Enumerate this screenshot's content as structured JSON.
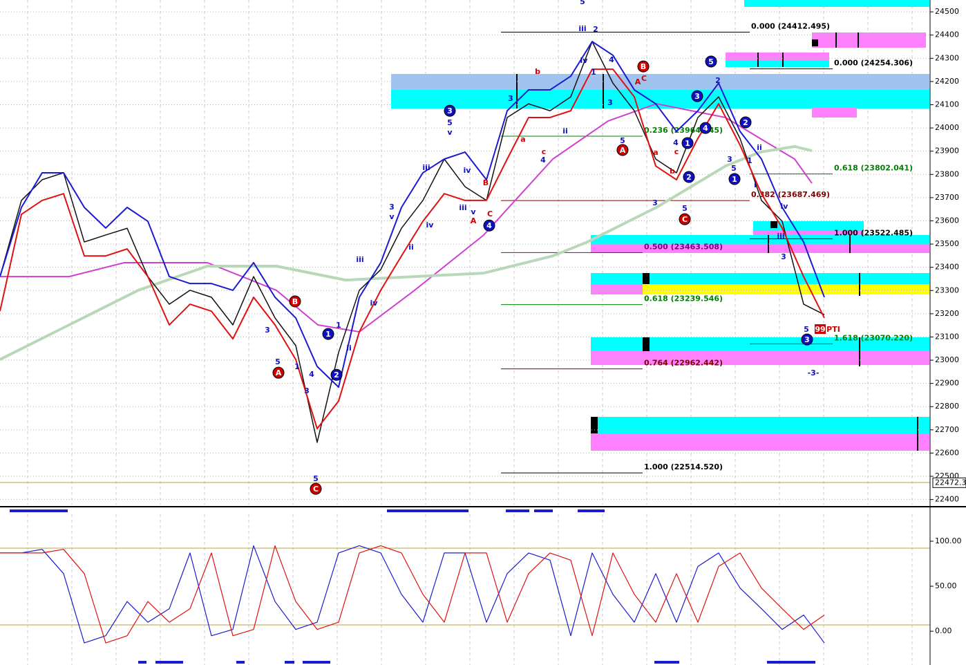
{
  "chart_data": [
    {
      "type": "line",
      "grid": true,
      "xlim": [
        0,
        1345
      ],
      "ylim": [
        22378,
        24551
      ],
      "yticks": [
        22400,
        22500,
        22600,
        22700,
        22800,
        22900,
        23000,
        23100,
        23200,
        23300,
        23400,
        23500,
        23600,
        23700,
        23800,
        23900,
        24000,
        24100,
        24200,
        24300,
        24400,
        24500
      ],
      "last_price": {
        "value": 22472.3,
        "label": "22472.3"
      },
      "series": [
        {
          "color": "#1010c8",
          "width": 2,
          "x": [
            0,
            100,
            180,
            300,
            400,
            460,
            520,
            600,
            700,
            800,
            880,
            950,
            1050,
            1100,
            1150,
            1175
          ],
          "values": [
            23360,
            23360,
            23420,
            23420,
            23301,
            23152,
            23122,
            23301,
            23539,
            23866,
            24030,
            24104,
            24045,
            23955,
            23866,
            23762
          ],
          "alt_color": "#d040d0"
        },
        {
          "color": "#b8d8b8",
          "width": 4,
          "x": [
            0,
            100,
            200,
            300,
            400,
            500,
            600,
            700,
            800,
            850,
            950,
            1050,
            1100,
            1150,
            1175
          ],
          "values": [
            23003,
            23152,
            23301,
            23405,
            23405,
            23345,
            23360,
            23375,
            23449,
            23509,
            23658,
            23836,
            23896,
            23920,
            23902
          ]
        },
        {
          "color": "#111111",
          "width": 1.5,
          "x": [
            0,
            31,
            61,
            92,
            122,
            153,
            184,
            214,
            245,
            275,
            306,
            337,
            367,
            398,
            428,
            459,
            490,
            520,
            551,
            581,
            612,
            643,
            673,
            704,
            734,
            765,
            796,
            826,
            857,
            887,
            918,
            949,
            979,
            1010,
            1040,
            1071,
            1102,
            1132,
            1163,
            1193
          ],
          "values": [
            23360,
            23688,
            23777,
            23807,
            23509,
            23539,
            23568,
            23360,
            23241,
            23301,
            23271,
            23152,
            23360,
            23182,
            23063,
            22646,
            23033,
            23301,
            23390,
            23568,
            23688,
            23866,
            23747,
            23688,
            24045,
            24104,
            24074,
            24134,
            24372,
            24193,
            24074,
            23866,
            23807,
            24045,
            24134,
            23955,
            23688,
            23598,
            23241,
            23196
          ]
        },
        {
          "color": "#1a1ad0",
          "width": 2,
          "x": [
            0,
            31,
            61,
            92,
            122,
            153,
            184,
            214,
            245,
            275,
            306,
            337,
            367,
            398,
            428,
            459,
            490,
            520,
            551,
            581,
            612,
            643,
            673,
            704,
            734,
            765,
            796,
            826,
            857,
            887,
            918,
            949,
            979,
            1010,
            1040,
            1071,
            1102,
            1132,
            1163,
            1193
          ],
          "values": [
            23360,
            23658,
            23807,
            23807,
            23658,
            23569,
            23658,
            23598,
            23360,
            23330,
            23330,
            23301,
            23420,
            23271,
            23182,
            22973,
            22884,
            23271,
            23420,
            23658,
            23807,
            23866,
            23896,
            23777,
            24074,
            24164,
            24164,
            24223,
            24372,
            24313,
            24164,
            24104,
            23985,
            24074,
            24193,
            23985,
            23866,
            23658,
            23509,
            23271
          ]
        },
        {
          "color": "#e01010",
          "width": 2,
          "x": [
            0,
            31,
            61,
            92,
            122,
            153,
            184,
            214,
            245,
            275,
            306,
            337,
            367,
            398,
            428,
            459,
            490,
            520,
            551,
            581,
            612,
            643,
            673,
            704,
            734,
            765,
            796,
            826,
            857,
            887,
            918,
            949,
            979,
            1010,
            1040,
            1071,
            1102,
            1132,
            1163,
            1193
          ],
          "values": [
            23211,
            23628,
            23688,
            23717,
            23449,
            23449,
            23479,
            23360,
            23152,
            23241,
            23211,
            23092,
            23271,
            23152,
            23003,
            22705,
            22824,
            23122,
            23301,
            23449,
            23598,
            23717,
            23688,
            23688,
            23866,
            24045,
            24045,
            24074,
            24253,
            24253,
            24134,
            23836,
            23777,
            23955,
            24104,
            23926,
            23717,
            23569,
            23360,
            23182
          ]
        }
      ],
      "fib_levels": [
        {
          "value": 24412.495,
          "label": "0.000 (24412.495)",
          "color": "#000000",
          "x": [
            725,
            1085
          ]
        },
        {
          "value": 24254.306,
          "label": "0.000 (24254.306)",
          "color": "#000000",
          "x": [
            1085,
            1205
          ]
        },
        {
          "value": 23964.545,
          "label": "0.236 (23964.545)",
          "color": "#008000",
          "x": [
            725,
            930
          ]
        },
        {
          "value": 23802.041,
          "label": "0.618 (23802.041)",
          "color": "#008000",
          "x": [
            1085,
            1205
          ]
        },
        {
          "value": 23687.469,
          "label": "0.382 (23687.469)",
          "color": "#800000",
          "x": [
            725,
            1085
          ]
        },
        {
          "value": 23522.485,
          "label": "1.000 (23522.485)",
          "color": "#000000",
          "x": [
            1085,
            1205
          ]
        },
        {
          "value": 23463.508,
          "label": "0.500 (23463.508)",
          "color": "#800080",
          "x": [
            725,
            930
          ]
        },
        {
          "value": 23239.546,
          "label": "0.618 (23239.546)",
          "color": "#008000",
          "x": [
            725,
            930
          ]
        },
        {
          "value": 23070.22,
          "label": "1.618 (23070.220)",
          "color": "#008000",
          "x": [
            1085,
            1205
          ]
        },
        {
          "value": 22962.442,
          "label": "0.764 (22962.442)",
          "color": "#800000",
          "x": [
            725,
            930
          ]
        },
        {
          "value": 22514.52,
          "label": "1.000 (22514.520)",
          "color": "#000000",
          "x": [
            725,
            930
          ]
        }
      ],
      "annotations": [
        {
          "text": "C",
          "x": 457,
          "y": 22446,
          "style": "red-circle"
        },
        {
          "text": "A",
          "x": 403,
          "y": 22946,
          "style": "red-circle"
        },
        {
          "text": "B",
          "x": 427,
          "y": 23253,
          "style": "red-circle"
        },
        {
          "text": "A",
          "x": 901,
          "y": 23905,
          "style": "red-circle"
        },
        {
          "text": "B",
          "x": 931,
          "y": 24265,
          "style": "red-circle"
        },
        {
          "text": "C",
          "x": 991,
          "y": 23607,
          "style": "red-circle"
        },
        {
          "text": "1",
          "x": 475,
          "y": 23113,
          "style": "blue-circle"
        },
        {
          "text": "2",
          "x": 487,
          "y": 22937,
          "style": "blue-circle"
        },
        {
          "text": "3",
          "x": 651,
          "y": 24074,
          "style": "blue-circle"
        },
        {
          "text": "4",
          "x": 708,
          "y": 23580,
          "style": "blue-circle"
        },
        {
          "text": "5",
          "x": 1029,
          "y": 24286,
          "style": "blue-circle"
        },
        {
          "text": "3",
          "x": 1009,
          "y": 24137,
          "style": "blue-circle"
        },
        {
          "text": "1",
          "x": 995,
          "y": 23935,
          "style": "blue-circle"
        },
        {
          "text": "2",
          "x": 997,
          "y": 23789,
          "style": "blue-circle"
        },
        {
          "text": "4",
          "x": 1021,
          "y": 24000,
          "style": "blue-circle"
        },
        {
          "text": "2",
          "x": 1079,
          "y": 24024,
          "style": "blue-circle"
        },
        {
          "text": "1",
          "x": 1063,
          "y": 23780,
          "style": "blue-circle"
        },
        {
          "text": "3",
          "x": 1168,
          "y": 23089,
          "style": "blue-circle"
        },
        {
          "text": "5",
          "x": 843,
          "y": 24545,
          "style": "blue"
        },
        {
          "text": "5",
          "x": 457,
          "y": 22491,
          "style": "blue"
        },
        {
          "text": "3",
          "x": 444,
          "y": 22869,
          "style": "blue"
        },
        {
          "text": "4",
          "x": 451,
          "y": 22941,
          "style": "blue"
        },
        {
          "text": "1",
          "x": 430,
          "y": 22973,
          "style": "blue"
        },
        {
          "text": "5",
          "x": 402,
          "y": 22994,
          "style": "blue"
        },
        {
          "text": "3",
          "x": 387,
          "y": 23131,
          "style": "blue"
        },
        {
          "text": "iii",
          "x": 521,
          "y": 23435,
          "style": "blue"
        },
        {
          "text": "iv",
          "x": 541,
          "y": 23247,
          "style": "blue"
        },
        {
          "text": "ii",
          "x": 505,
          "y": 23054,
          "style": "blue"
        },
        {
          "text": "1",
          "x": 490,
          "y": 23152,
          "style": "blue"
        },
        {
          "text": "3",
          "x": 567,
          "y": 23661,
          "style": "blue"
        },
        {
          "text": "v",
          "x": 567,
          "y": 23619,
          "style": "blue"
        },
        {
          "text": "iii",
          "x": 617,
          "y": 23830,
          "style": "blue"
        },
        {
          "text": "iv",
          "x": 622,
          "y": 23583,
          "style": "blue"
        },
        {
          "text": "ii",
          "x": 595,
          "y": 23488,
          "style": "blue"
        },
        {
          "text": "5",
          "x": 651,
          "y": 24024,
          "style": "blue"
        },
        {
          "text": "v",
          "x": 651,
          "y": 23982,
          "style": "blue"
        },
        {
          "text": "iv",
          "x": 676,
          "y": 23819,
          "style": "blue"
        },
        {
          "text": "iii",
          "x": 670,
          "y": 23658,
          "style": "blue"
        },
        {
          "text": "v",
          "x": 685,
          "y": 23640,
          "style": "blue"
        },
        {
          "text": "iii",
          "x": 843,
          "y": 24429,
          "style": "blue"
        },
        {
          "text": "2",
          "x": 862,
          "y": 24426,
          "style": "blue"
        },
        {
          "text": "iv",
          "x": 845,
          "y": 24292,
          "style": "blue"
        },
        {
          "text": "1",
          "x": 859,
          "y": 24241,
          "style": "blue"
        },
        {
          "text": "4",
          "x": 885,
          "y": 24295,
          "style": "blue"
        },
        {
          "text": "3",
          "x": 883,
          "y": 24110,
          "style": "blue"
        },
        {
          "text": "ii",
          "x": 818,
          "y": 23988,
          "style": "blue"
        },
        {
          "text": "4",
          "x": 786,
          "y": 23863,
          "style": "blue"
        },
        {
          "text": "5",
          "x": 901,
          "y": 23946,
          "style": "blue"
        },
        {
          "text": "3",
          "x": 739,
          "y": 24128,
          "style": "blue"
        },
        {
          "text": "5",
          "x": 1167,
          "y": 23134,
          "style": "blue"
        },
        {
          "text": "-3-",
          "x": 1177,
          "y": 22946,
          "style": "blue"
        },
        {
          "text": "iii",
          "x": 1130,
          "y": 23536,
          "style": "blue"
        },
        {
          "text": "3",
          "x": 1134,
          "y": 23447,
          "style": "blue"
        },
        {
          "text": "iv",
          "x": 1135,
          "y": 23664,
          "style": "blue"
        },
        {
          "text": "i",
          "x": 1093,
          "y": 23756,
          "style": "blue"
        },
        {
          "text": "ii",
          "x": 1099,
          "y": 23917,
          "style": "blue"
        },
        {
          "text": "3",
          "x": 1056,
          "y": 23866,
          "style": "blue"
        },
        {
          "text": "5",
          "x": 1062,
          "y": 23828,
          "style": "blue"
        },
        {
          "text": "1",
          "x": 1085,
          "y": 23860,
          "style": "blue"
        },
        {
          "text": "2",
          "x": 1039,
          "y": 24205,
          "style": "blue"
        },
        {
          "text": "3",
          "x": 948,
          "y": 23679,
          "style": "blue"
        },
        {
          "text": "5",
          "x": 991,
          "y": 23655,
          "style": "blue"
        },
        {
          "text": "4",
          "x": 978,
          "y": 23938,
          "style": "blue"
        },
        {
          "text": "b",
          "x": 778,
          "y": 24244,
          "style": "red"
        },
        {
          "text": "a",
          "x": 757,
          "y": 23952,
          "style": "red"
        },
        {
          "text": "c",
          "x": 787,
          "y": 23899,
          "style": "red"
        },
        {
          "text": "A",
          "x": 685,
          "y": 23602,
          "style": "red"
        },
        {
          "text": "B",
          "x": 703,
          "y": 23765,
          "style": "red"
        },
        {
          "text": "C",
          "x": 709,
          "y": 23631,
          "style": "red"
        },
        {
          "text": "A",
          "x": 923,
          "y": 24200,
          "style": "red"
        },
        {
          "text": "C",
          "x": 932,
          "y": 24215,
          "style": "red"
        },
        {
          "text": "a",
          "x": 949,
          "y": 23896,
          "style": "red"
        },
        {
          "text": "c",
          "x": 979,
          "y": 23899,
          "style": "red"
        },
        {
          "text": "b",
          "x": 973,
          "y": 23816,
          "style": "red"
        },
        {
          "text": "99",
          "x": 1187,
          "y": 23134,
          "style": "red-box"
        },
        {
          "text": "PTI",
          "x": 1206,
          "y": 23134,
          "style": "red"
        }
      ]
    },
    {
      "type": "line",
      "xlim": [
        0,
        1345
      ],
      "ylim": [
        -36,
        133
      ],
      "yticks": [
        {
          "value": 100,
          "label": "100.00"
        },
        {
          "value": 50,
          "label": "50.00"
        },
        {
          "value": 0,
          "label": "0.00"
        }
      ],
      "x": [
        0,
        31,
        61,
        92,
        122,
        153,
        184,
        214,
        245,
        275,
        306,
        337,
        367,
        398,
        428,
        459,
        490,
        520,
        551,
        581,
        612,
        643,
        673,
        704,
        734,
        765,
        796,
        826,
        857,
        887,
        918,
        949,
        979,
        1010,
        1040,
        1071,
        1102,
        1132,
        1163,
        1193
      ],
      "series": [
        {
          "color": "#1a1ad0",
          "width": 1.2,
          "values": [
            87,
            87,
            91,
            64,
            -13,
            -5,
            33,
            10,
            25,
            87,
            -5,
            2,
            95,
            33,
            2,
            10,
            87,
            95,
            87,
            41,
            10,
            87,
            87,
            10,
            64,
            87,
            79,
            -5,
            87,
            41,
            10,
            64,
            10,
            72,
            87,
            48,
            25,
            2,
            18,
            -13
          ]
        },
        {
          "color": "#e01010",
          "width": 1.2,
          "values": [
            87,
            87,
            87,
            91,
            64,
            -13,
            -5,
            33,
            10,
            25,
            87,
            -5,
            2,
            95,
            33,
            2,
            10,
            87,
            95,
            87,
            41,
            10,
            87,
            87,
            10,
            64,
            87,
            79,
            -5,
            87,
            41,
            10,
            64,
            10,
            72,
            87,
            48,
            25,
            2,
            18
          ]
        }
      ]
    }
  ]
}
